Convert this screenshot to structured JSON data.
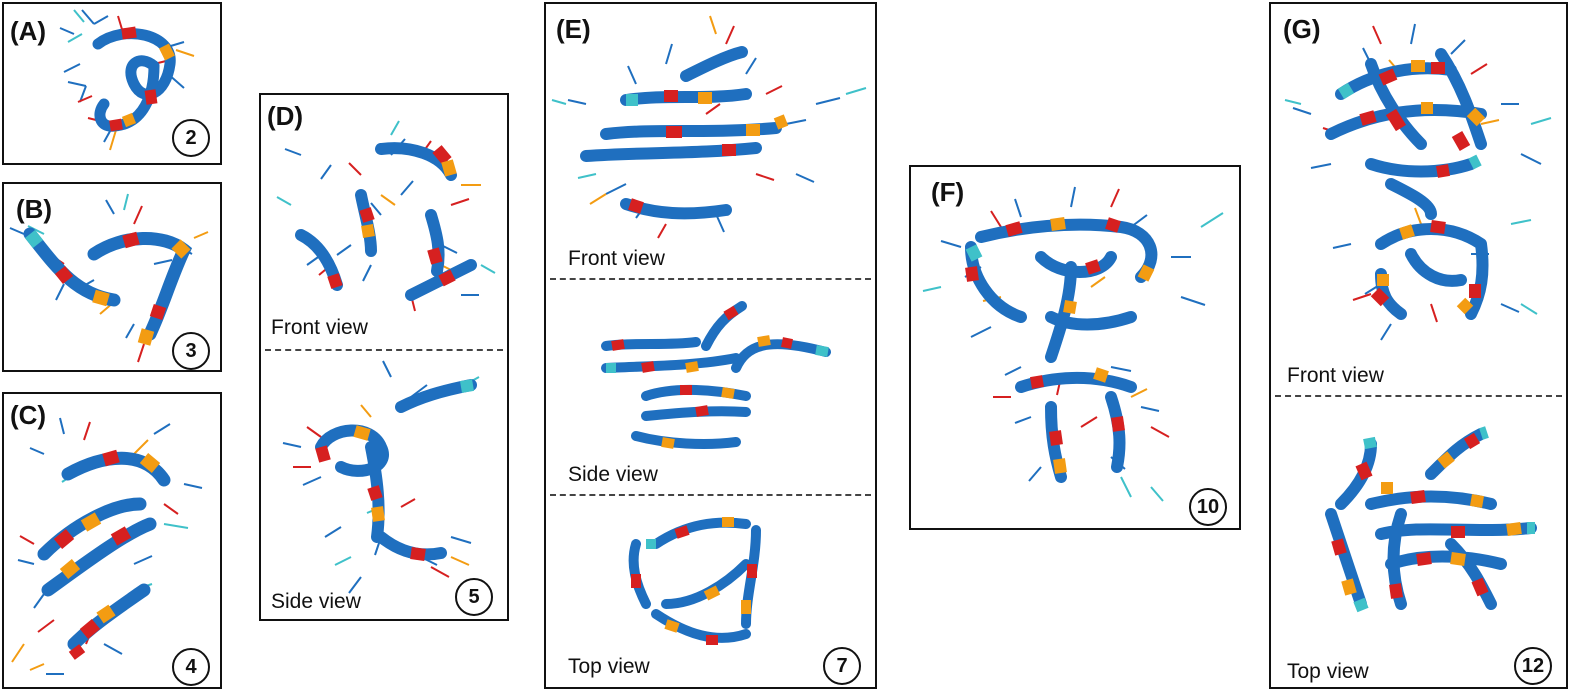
{
  "panels": {
    "A": {
      "label": "(A)",
      "count": "2"
    },
    "B": {
      "label": "(B)",
      "count": "3"
    },
    "C": {
      "label": "(C)",
      "count": "4"
    },
    "D": {
      "label": "(D)",
      "count": "5",
      "views": [
        "Front view",
        "Side view"
      ]
    },
    "E": {
      "label": "(E)",
      "count": "7",
      "views": [
        "Front view",
        "Side view",
        "Top view"
      ]
    },
    "F": {
      "label": "(F)",
      "count": "10"
    },
    "G": {
      "label": "(G)",
      "count": "12",
      "views": [
        "Front view",
        "Top view"
      ]
    }
  },
  "colors": {
    "blue": "#1f6fbf",
    "red": "#d62020",
    "orange": "#f39c12",
    "cyan": "#3fc1c9",
    "border": "#111111"
  }
}
